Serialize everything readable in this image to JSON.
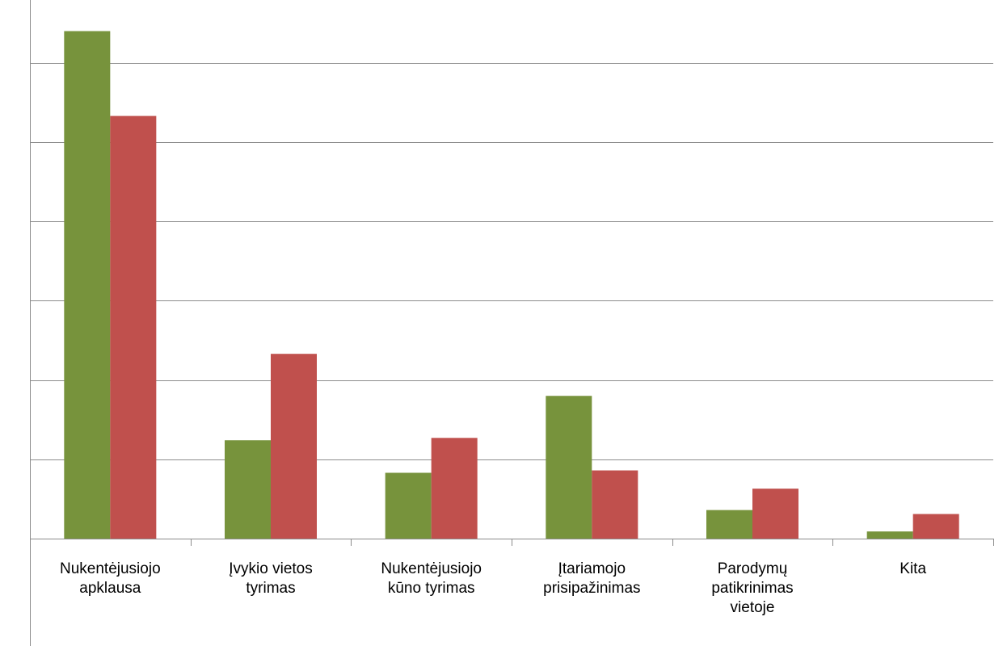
{
  "chart_data": {
    "type": "bar",
    "categories": [
      [
        "Nukentėjusiojo",
        "apklausa"
      ],
      [
        "Įvykio vietos",
        "tyrimas"
      ],
      [
        "Nukentėjusiojo",
        "kūno tyrimas"
      ],
      [
        "Įtariamojo",
        "prisipažinimas"
      ],
      [
        "Parodymų",
        "patikrinimas",
        "vietoje"
      ],
      [
        "Kita"
      ]
    ],
    "series": [
      {
        "color": "#77933c",
        "values": [
          6.4,
          1.24,
          0.83,
          1.8,
          0.36,
          0.09
        ]
      },
      {
        "color": "#c0504d",
        "values": [
          5.33,
          2.33,
          1.27,
          0.86,
          0.63,
          0.31
        ]
      }
    ],
    "ylim": [
      0,
      6.4
    ],
    "gridline_step": 1,
    "grid": true,
    "legend": "none"
  }
}
